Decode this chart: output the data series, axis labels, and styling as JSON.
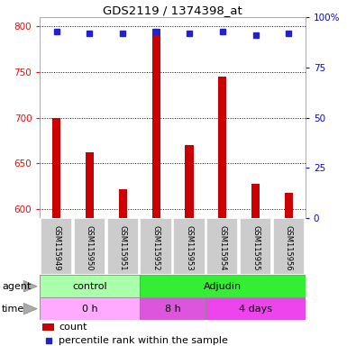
{
  "title": "GDS2119 / 1374398_at",
  "samples": [
    "GSM115949",
    "GSM115950",
    "GSM115951",
    "GSM115952",
    "GSM115953",
    "GSM115954",
    "GSM115955",
    "GSM115956"
  ],
  "counts": [
    700,
    662,
    622,
    797,
    670,
    745,
    627,
    618
  ],
  "percentiles": [
    93,
    92,
    92,
    93,
    92,
    93,
    91,
    92
  ],
  "ylim_left": [
    590,
    810
  ],
  "ylim_right": [
    0,
    100
  ],
  "yticks_left": [
    600,
    650,
    700,
    750,
    800
  ],
  "yticks_right": [
    0,
    25,
    50,
    75,
    100
  ],
  "bar_color": "#cc0000",
  "dot_color": "#2222cc",
  "agent_groups": [
    {
      "label": "control",
      "start": 0,
      "end": 3,
      "color": "#aaffaa"
    },
    {
      "label": "Adjudin",
      "start": 3,
      "end": 8,
      "color": "#33ee33"
    }
  ],
  "time_groups": [
    {
      "label": "0 h",
      "start": 0,
      "end": 3,
      "color": "#ffaaff"
    },
    {
      "label": "8 h",
      "start": 3,
      "end": 5,
      "color": "#dd55dd"
    },
    {
      "label": "4 days",
      "start": 5,
      "end": 8,
      "color": "#ee44ee"
    }
  ],
  "legend_count_color": "#cc0000",
  "legend_dot_color": "#2222cc",
  "sample_bg_color": "#cccccc",
  "bar_width": 0.25,
  "dot_size": 5
}
